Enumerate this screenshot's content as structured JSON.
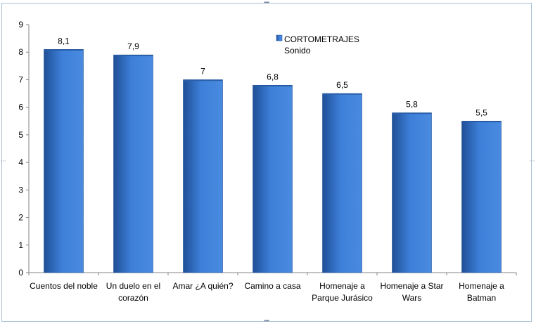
{
  "chart_data": {
    "type": "bar",
    "categories": [
      [
        "Cuentos del noble"
      ],
      [
        "Un duelo en el",
        "corazón"
      ],
      [
        "Amar ¿A quién?"
      ],
      [
        "Camino a casa"
      ],
      [
        "Homenaje a",
        "Parque Jurásico"
      ],
      [
        "Homenaje a Star",
        "Wars"
      ],
      [
        "Homenaje a",
        "Batman"
      ]
    ],
    "series": [
      {
        "name": "CORTOMETRAJES Sonido",
        "values": [
          8.1,
          7.9,
          7.0,
          6.8,
          6.5,
          5.8,
          5.5
        ],
        "data_labels": [
          "8,1",
          "7,9",
          "7",
          "6,8",
          "6,5",
          "5,8",
          "5,5"
        ]
      }
    ],
    "legend": {
      "line1": "CORTOMETRAJES",
      "line2": "Sonido",
      "position": "top-right"
    },
    "ylim": [
      0,
      9
    ],
    "yticks": [
      "0",
      "1",
      "2",
      "3",
      "4",
      "5",
      "6",
      "7",
      "8",
      "9"
    ],
    "grid": false,
    "colors": {
      "bar_dark": "#1f4f96",
      "bar_mid": "#3d7fd9",
      "bar_light": "#4a8be0",
      "axis": "#868686"
    }
  }
}
